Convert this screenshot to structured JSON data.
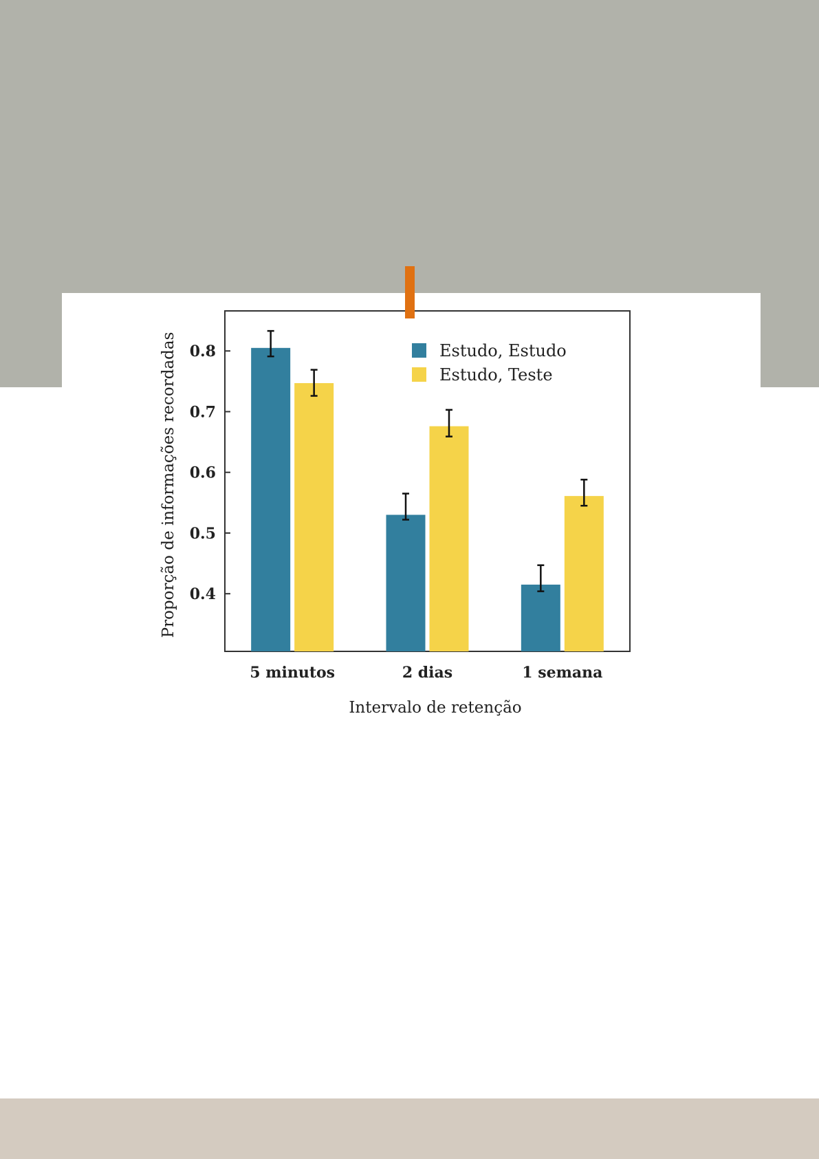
{
  "colors": {
    "top_band": "#b1b2aa",
    "bottom_band": "#d4cbc0",
    "marker": "#e07112"
  },
  "chart_data": {
    "type": "bar",
    "categories": [
      "5 minutos",
      "2 dias",
      "1 semana"
    ],
    "series": [
      {
        "name": "Estudo, Estudo",
        "color": "#327f9e",
        "values": [
          0.805,
          0.53,
          0.415
        ],
        "error_low": [
          0.791,
          0.522,
          0.404
        ],
        "error_high": [
          0.833,
          0.565,
          0.447
        ]
      },
      {
        "name": "Estudo, Teste",
        "color": "#f5d349",
        "values": [
          0.747,
          0.676,
          0.561
        ],
        "error_low": [
          0.726,
          0.659,
          0.545
        ],
        "error_high": [
          0.769,
          0.703,
          0.588
        ]
      }
    ],
    "xlabel": "Intervalo de retenção",
    "ylabel": "Proporção de informações recordadas",
    "ylim": [
      0.305,
      0.866
    ],
    "yticks": [
      "0.4",
      "0.5",
      "0.6",
      "0.7",
      "0.8"
    ],
    "grid": false,
    "legend_position": "top-right"
  }
}
